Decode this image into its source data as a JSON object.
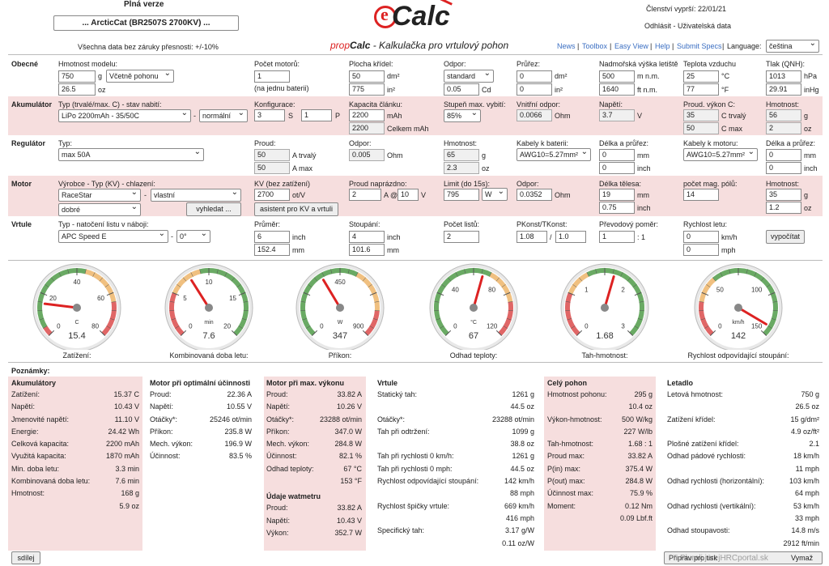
{
  "header": {
    "version": "Plná verze",
    "model_button": "... ArcticCat (BR2507S 2700KV) ...",
    "disclaimer": "Všechna data bez záruky přesnosti: +/-10%",
    "logo_e": "e",
    "logo_calc": "Calc",
    "subtitle_prop": "prop",
    "subtitle_calc": "Calc",
    "subtitle_rest": " - Kalkulačka pro vrtulový pohon",
    "membership": "Členství vyprší: 22/01/21",
    "account": "Odhlásit - Uživatelská data",
    "nav": [
      "News",
      "Toolbox",
      "Easy View",
      "Help",
      "Submit Specs"
    ],
    "language_label": "Language:",
    "language_value": "čeština"
  },
  "obecne": {
    "head": "Obecné",
    "mass_label": "Hmotnost modelu:",
    "mass_g": "750",
    "mass_unit_g": "g",
    "mass_mode": "Včetně pohonu",
    "mass_oz": "26.5",
    "mass_unit_oz": "oz",
    "motors_label": "Počet motorů:",
    "motors": "1",
    "motors_note": "(na jednu baterii)",
    "wing_label": "Plocha křídel:",
    "wing_dm": "50",
    "wing_unit_dm": "dm²",
    "wing_in": "775",
    "wing_unit_in": "in²",
    "drag_label": "Odpor:",
    "drag_mode": "standard",
    "drag_cd": "0.05",
    "drag_unit": "Cd",
    "cross_label": "Průřez:",
    "cross_dm": "0",
    "cross_unit_dm": "dm²",
    "cross_in": "0",
    "cross_unit_in": "in²",
    "alt_label": "Nadmořská výška letiště",
    "alt_m": "500",
    "alt_unit_m": "m n.m.",
    "alt_ft": "1640",
    "alt_unit_ft": "ft n.m.",
    "temp_label": "Teplota vzduchu",
    "temp_c": "25",
    "temp_unit_c": "°C",
    "temp_f": "77",
    "temp_unit_f": "°F",
    "press_label": "Tlak (QNH):",
    "press_hpa": "1013",
    "press_unit_hpa": "hPa",
    "press_inhg": "29.91",
    "press_unit_inhg": "inHg"
  },
  "akumulator": {
    "head": "Akumulátor",
    "type_label": "Typ (trvalé/max. C) - stav nabití:",
    "type": "LiPo 2200mAh - 35/50C",
    "dash": "-",
    "charge": "normální",
    "config_label": "Konfigurace:",
    "config_s": "3",
    "config_s_unit": "S",
    "config_p": "1",
    "config_p_unit": "P",
    "cap_label": "Kapacita článku:",
    "cap": "2200",
    "cap_unit": "mAh",
    "cap_total": "2200",
    "cap_total_unit": "Celkem mAh",
    "disch_label": "Stupeň max. vybití:",
    "disch": "85%",
    "res_label": "Vnitřní odpor:",
    "res": "0.0066",
    "res_unit": "Ohm",
    "volt_label": "Napětí:",
    "volt": "3.7",
    "volt_unit": "V",
    "curr_label": "Proud. výkon C:",
    "curr_cont": "35",
    "curr_cont_unit": "C trvalý",
    "curr_max": "50",
    "curr_max_unit": "C max",
    "mass_label": "Hmotnost:",
    "mass_g": "56",
    "mass_unit_g": "g",
    "mass_oz": "2",
    "mass_unit_oz": "oz"
  },
  "regulator": {
    "head": "Regulátor",
    "type_label": "Typ:",
    "type": "max 50A",
    "curr_label": "Proud:",
    "curr_cont": "50",
    "curr_cont_unit": "A trvalý",
    "curr_max": "50",
    "curr_max_unit": "A max",
    "res_label": "Odpor:",
    "res": "0.005",
    "res_unit": "Ohm",
    "mass_label": "Hmotnost:",
    "mass_g": "65",
    "mass_unit_g": "g",
    "mass_oz": "2.3",
    "mass_unit_oz": "oz",
    "bat_cable_label": "Kabely k baterii:",
    "bat_cable": "AWG10=5.27mm²",
    "len_label": "Délka a průřez:",
    "len_mm": "0",
    "len_unit_mm": "mm",
    "len_in": "0",
    "len_unit_in": "inch",
    "mot_cable_label": "Kabely k motoru:",
    "mot_cable": "AWG10=5.27mm²",
    "len2_label": "Délka a průřez:",
    "len2_mm": "0",
    "len2_unit_mm": "mm",
    "len2_in": "0",
    "len2_unit_in": "inch"
  },
  "motor": {
    "head": "Motor",
    "maker_label": "Výrobce - Typ (KV) - chlazení:",
    "maker": "RaceStar",
    "dash": "-",
    "type": "vlastní",
    "cooling": "dobré",
    "search_btn": "vyhledat ...",
    "kv_label": "KV (bez zatížení)",
    "kv": "2700",
    "kv_unit": "ot/V",
    "kv_btn": "asistent pro KV a vrtuli",
    "idle_label": "Proud naprázdno:",
    "idle_a": "2",
    "idle_a_unit": "A @",
    "idle_v": "10",
    "idle_v_unit": "V",
    "limit_label": "Limit (do 15s):",
    "limit": "795",
    "limit_unit": "W",
    "res_label": "Odpor:",
    "res": "0.0352",
    "res_unit": "Ohm",
    "len_label": "Délka tělesa:",
    "len_mm": "19",
    "len_unit_mm": "mm",
    "len_in": "0.75",
    "len_unit_in": "inch",
    "poles_label": "počet mag. pólů:",
    "poles": "14",
    "mass_label": "Hmotnost:",
    "mass_g": "35",
    "mass_unit_g": "g",
    "mass_oz": "1.2",
    "mass_unit_oz": "oz"
  },
  "vrtule": {
    "head": "Vrtule",
    "type_label": "Typ - natočení listu v náboji:",
    "type": "APC Speed E",
    "dash": "-",
    "angle": "0°",
    "dia_label": "Průměr:",
    "dia_in": "6",
    "dia_unit_in": "inch",
    "dia_mm": "152.4",
    "dia_unit_mm": "mm",
    "pitch_label": "Stoupání:",
    "pitch_in": "4",
    "pitch_unit_in": "inch",
    "pitch_mm": "101.6",
    "pitch_unit_mm": "mm",
    "blades_label": "Počet listů:",
    "blades": "2",
    "pconst_label": "PKonst/TKonst:",
    "pconst": "1.08",
    "slash": "/",
    "tconst": "1.0",
    "gear_label": "Převodový poměr:",
    "gear": "1",
    "gear_unit": ": 1",
    "speed_label": "Rychlost letu:",
    "speed_kmh": "0",
    "speed_unit_kmh": "km/h",
    "speed_mph": "0",
    "speed_unit_mph": "mph",
    "calc_btn": "vypočítat"
  },
  "gauges": [
    {
      "label": "Zatížení:",
      "value": "15.4",
      "unit": "C",
      "ticks": [
        "0",
        "20",
        "40",
        "60",
        "80"
      ],
      "min": 0,
      "max": 80,
      "reading": 15.4
    },
    {
      "label": "Kombinovaná doba letu:",
      "value": "7.6",
      "unit": "min",
      "ticks": [
        "0",
        "5",
        "10",
        "15",
        "20"
      ],
      "min": 0,
      "max": 20,
      "reading": 7.6
    },
    {
      "label": "Příkon:",
      "value": "347",
      "unit": "W",
      "ticks": [
        "0",
        "450",
        "900"
      ],
      "min": 0,
      "max": 900,
      "reading": 347
    },
    {
      "label": "Odhad teploty:",
      "value": "67",
      "unit": "°C",
      "ticks": [
        "0",
        "40",
        "80",
        "120"
      ],
      "min": 0,
      "max": 120,
      "reading": 67
    },
    {
      "label": "Tah-hmotnost:",
      "value": "1.68",
      "unit": "",
      "ticks": [
        "0",
        "1",
        "2",
        "3"
      ],
      "min": 0,
      "max": 3,
      "reading": 1.68
    },
    {
      "label": "Rychlost odpovídající stoupání:",
      "value": "142",
      "unit": "km/h",
      "ticks": [
        "0",
        "50",
        "100",
        "150"
      ],
      "min": 0,
      "max": 150,
      "reading": 142
    }
  ],
  "notes_label": "Poznámky:",
  "results": {
    "bat": {
      "title": "Akumulátory",
      "rows": [
        [
          "Zatížení:",
          "15.37 C"
        ],
        [
          "Napětí:",
          "10.43 V"
        ],
        [
          "Jmenovité napětí:",
          "11.10 V"
        ],
        [
          "Energie:",
          "24.42 Wh"
        ],
        [
          "Celková kapacita:",
          "2200 mAh"
        ],
        [
          "Využitá kapacita:",
          "1870 mAh"
        ],
        [
          "Min. doba letu:",
          "3.3 min"
        ],
        [
          "Kombinovaná doba letu:",
          "7.6 min"
        ],
        [
          "Hmotnost:",
          "168 g"
        ],
        [
          "",
          "5.9 oz"
        ]
      ]
    },
    "opt": {
      "title": "Motor při optimální účinnosti",
      "rows": [
        [
          "Proud:",
          "22.36 A"
        ],
        [
          "Napětí:",
          "10.55 V"
        ],
        [
          "Otáčky*:",
          "25246 ot/min"
        ],
        [
          "Příkon:",
          "235.8 W"
        ],
        [
          "Mech. výkon:",
          "196.9 W"
        ],
        [
          "Účinnost:",
          "83.5 %"
        ]
      ]
    },
    "max": {
      "title": "Motor při max. výkonu",
      "rows": [
        [
          "Proud:",
          "33.82 A"
        ],
        [
          "Napětí:",
          "10.26 V"
        ],
        [
          "Otáčky*:",
          "23288 ot/min"
        ],
        [
          "Příkon:",
          "347.0 W"
        ],
        [
          "Mech. výkon:",
          "284.8 W"
        ],
        [
          "Účinnost:",
          "82.1 %"
        ],
        [
          "Odhad teploty:",
          "67 °C"
        ],
        [
          "",
          "153 °F"
        ]
      ],
      "watt_title": "Údaje watmetru",
      "watt_rows": [
        [
          "Proud:",
          "33.82 A"
        ],
        [
          "Napětí:",
          "10.43 V"
        ],
        [
          "Výkon:",
          "352.7 W"
        ]
      ]
    },
    "prop": {
      "title": "Vrtule",
      "rows": [
        [
          "Statický tah:",
          "1261 g"
        ],
        [
          "",
          "44.5 oz"
        ],
        [
          "Otáčky*:",
          "23288 ot/min"
        ],
        [
          "Tah při odtržení:",
          "1099 g"
        ],
        [
          "",
          "38.8 oz"
        ],
        [
          "Tah při rychlosti 0 km/h:",
          "1261 g"
        ],
        [
          "Tah při rychlosti 0 mph:",
          "44.5 oz"
        ],
        [
          "Rychlost odpovídající stoupání:",
          "142 km/h"
        ],
        [
          "",
          "88 mph"
        ],
        [
          "Rychlost špičky vrtule:",
          "669 km/h"
        ],
        [
          "",
          "416 mph"
        ],
        [
          "Specifický tah:",
          "3.17 g/W"
        ],
        [
          "",
          "0.11 oz/W"
        ]
      ]
    },
    "drive": {
      "title": "Celý pohon",
      "rows": [
        [
          "Hmotnost pohonu:",
          "295 g"
        ],
        [
          "",
          "10.4 oz"
        ],
        [
          "Výkon-hmotnost:",
          "500 W/kg"
        ],
        [
          "",
          "227 W/lb"
        ],
        [
          "Tah-hmotnost:",
          "1.68 : 1"
        ],
        [
          "Proud max:",
          "33.82 A"
        ],
        [
          "P(in) max:",
          "375.4 W"
        ],
        [
          "P(out) max:",
          "284.8 W"
        ],
        [
          "Účinnost max:",
          "75.9 %"
        ],
        [
          "Moment:",
          "0.12 Nm"
        ],
        [
          "",
          "0.09 Lbf.ft"
        ]
      ]
    },
    "plane": {
      "title": "Letadlo",
      "rows": [
        [
          "Letová hmotnost:",
          "750 g"
        ],
        [
          "",
          "26.5 oz"
        ],
        [
          "Zatížení křídel:",
          "15 g/dm²"
        ],
        [
          "",
          "4.9 oz/ft²"
        ],
        [
          "Plošné zatížení křídel:",
          "2.1"
        ],
        [
          "Odhad pádové rychlosti:",
          "18 km/h"
        ],
        [
          "",
          "11 mph"
        ],
        [
          "Odhad rychlosti (horizontální):",
          "103 km/h"
        ],
        [
          "",
          "64 mph"
        ],
        [
          "Odhad rychlosti (vertikální):",
          "53 km/h"
        ],
        [
          "",
          "33 mph"
        ],
        [
          "Odhad stoupavosti:",
          "14.8 m/s"
        ],
        [
          "",
          "2912 ft/min"
        ]
      ]
    }
  },
  "footer": {
    "share": "sdílej",
    "print": "Připrav pro tisk",
    "clear": "Vymaž",
    "watermark": "Pluralj.jurejHRCportal.sk"
  }
}
